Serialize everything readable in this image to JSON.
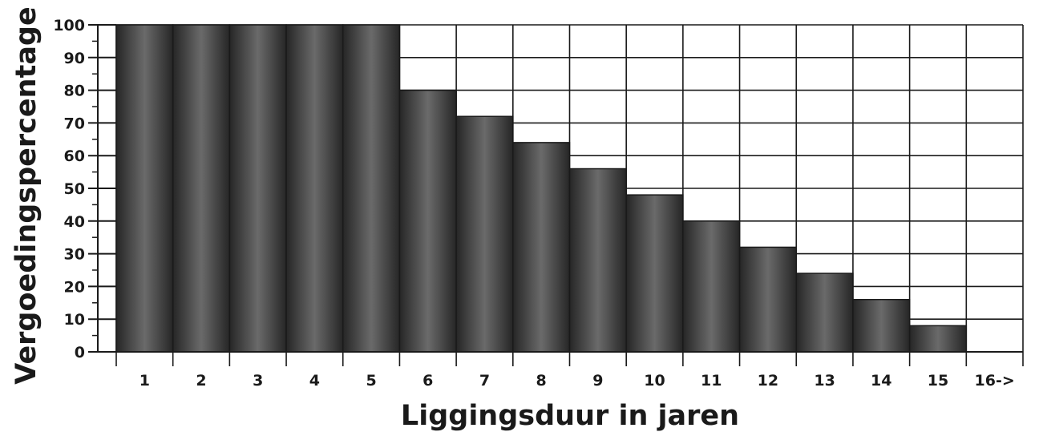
{
  "chart_data": {
    "type": "bar",
    "title": "",
    "xlabel": "Liggingsduur in jaren",
    "ylabel": "Vergoedingspercentage",
    "categories": [
      "1",
      "2",
      "3",
      "4",
      "5",
      "6",
      "7",
      "8",
      "9",
      "10",
      "11",
      "12",
      "13",
      "14",
      "15",
      "16->"
    ],
    "values": [
      100,
      100,
      100,
      100,
      100,
      80,
      72,
      64,
      56,
      48,
      40,
      32,
      24,
      16,
      8,
      0
    ],
    "ylim": [
      0,
      100
    ],
    "yticks": [
      "0",
      "10",
      "20",
      "30",
      "40",
      "50",
      "60",
      "70",
      "80",
      "90",
      "100"
    ],
    "grid": true,
    "colors": {
      "bar_edge": "#1a1a1a",
      "bar_dark": "#262626",
      "bar_light": "#6a6a6a",
      "grid": "#1a1a1a"
    }
  }
}
